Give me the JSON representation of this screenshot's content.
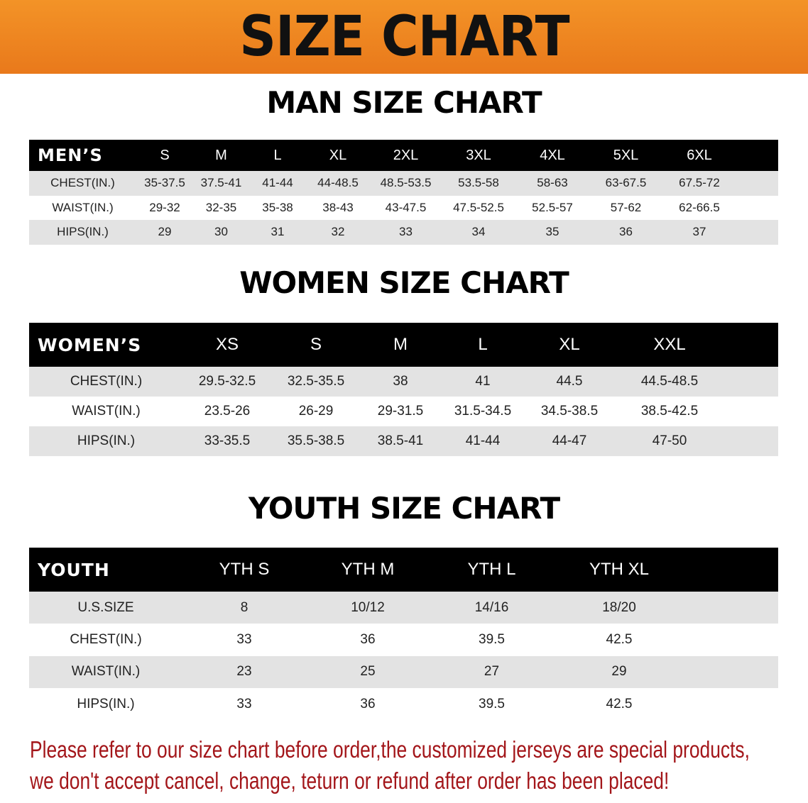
{
  "banner": {
    "title": "SIZE CHART"
  },
  "men": {
    "title": "MAN SIZE CHART",
    "header": [
      "MEN’S",
      "S",
      "M",
      "L",
      "XL",
      "2XL",
      "3XL",
      "4XL",
      "5XL",
      "6XL"
    ],
    "rows": [
      [
        "CHEST(IN.)",
        "35-37.5",
        "37.5-41",
        "41-44",
        "44-48.5",
        "48.5-53.5",
        "53.5-58",
        "58-63",
        "63-67.5",
        "67.5-72"
      ],
      [
        "WAIST(IN.)",
        "29-32",
        "32-35",
        "35-38",
        "38-43",
        "43-47.5",
        "47.5-52.5",
        "52.5-57",
        "57-62",
        "62-66.5"
      ],
      [
        "HIPS(IN.)",
        "29",
        "30",
        "31",
        "32",
        "33",
        "34",
        "35",
        "36",
        "37"
      ]
    ]
  },
  "women": {
    "title": "WOMEN SIZE CHART",
    "header": [
      "WOMEN’S",
      "XS",
      "S",
      "M",
      "L",
      "XL",
      "XXL"
    ],
    "rows": [
      [
        "CHEST(IN.)",
        "29.5-32.5",
        "32.5-35.5",
        "38",
        "41",
        "44.5",
        "44.5-48.5"
      ],
      [
        "WAIST(IN.)",
        "23.5-26",
        "26-29",
        "29-31.5",
        "31.5-34.5",
        "34.5-38.5",
        "38.5-42.5"
      ],
      [
        "HIPS(IN.)",
        "33-35.5",
        "35.5-38.5",
        "38.5-41",
        "41-44",
        "44-47",
        "47-50"
      ]
    ]
  },
  "youth": {
    "title": "YOUTH SIZE CHART",
    "header": [
      "YOUTH",
      "YTH S",
      "YTH M",
      "YTH L",
      "YTH XL"
    ],
    "rows": [
      [
        "U.S.SIZE",
        "8",
        "10/12",
        "14/16",
        "18/20"
      ],
      [
        "CHEST(IN.)",
        "33",
        "36",
        "39.5",
        "42.5"
      ],
      [
        "WAIST(IN.)",
        "23",
        "25",
        "27",
        "29"
      ],
      [
        "HIPS(IN.)",
        "33",
        "36",
        "39.5",
        "42.5"
      ]
    ]
  },
  "notice": {
    "line1": "Please refer to our size chart before order,the customized jerseys are special products,",
    "line2": "we don't accept cancel, change, teturn or refund after order has been placed!"
  },
  "colors": {
    "banner": "#f08a24",
    "notice": "#a3161a",
    "header_bg": "#000000",
    "stripe": "#e3e3e3"
  }
}
